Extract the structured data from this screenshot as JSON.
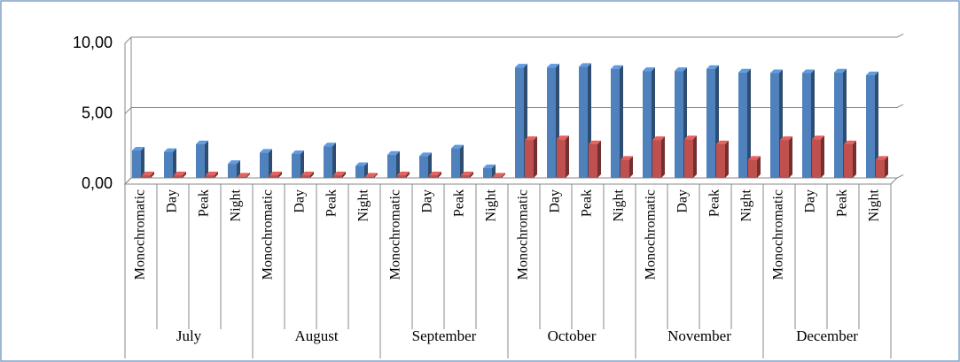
{
  "chart_data": {
    "type": "bar3d",
    "categories": [
      "Monochromatic",
      "Day",
      "Peak",
      "Night",
      "Monochromatic",
      "Day",
      "Peak",
      "Night",
      "Monochromatic",
      "Day",
      "Peak",
      "Night",
      "Monochromatic",
      "Day",
      "Peak",
      "Night",
      "Monochromatic",
      "Day",
      "Peak",
      "Night",
      "Monochromatic",
      "Day",
      "Peak",
      "Night"
    ],
    "groups": [
      "July",
      "August",
      "September",
      "October",
      "November",
      "December"
    ],
    "series": [
      {
        "color": "#4f81bd",
        "values": [
          1.95,
          1.85,
          2.4,
          1.0,
          1.8,
          1.7,
          2.25,
          0.85,
          1.65,
          1.55,
          2.1,
          0.7,
          7.85,
          7.85,
          7.9,
          7.75,
          7.6,
          7.6,
          7.75,
          7.5,
          7.45,
          7.45,
          7.5,
          7.3
        ]
      },
      {
        "color": "#c0504d",
        "values": [
          0.2,
          0.2,
          0.2,
          0.1,
          0.2,
          0.2,
          0.2,
          0.1,
          0.2,
          0.2,
          0.2,
          0.1,
          2.7,
          2.75,
          2.4,
          1.3,
          2.7,
          2.75,
          2.4,
          1.3,
          2.7,
          2.75,
          2.4,
          1.3
        ]
      }
    ],
    "ylim": [
      0,
      10
    ],
    "yticks": [
      {
        "value": 0,
        "label": "0,00"
      },
      {
        "value": 5,
        "label": "5,00"
      },
      {
        "value": 10,
        "label": "10,00"
      }
    ],
    "grid": true
  }
}
